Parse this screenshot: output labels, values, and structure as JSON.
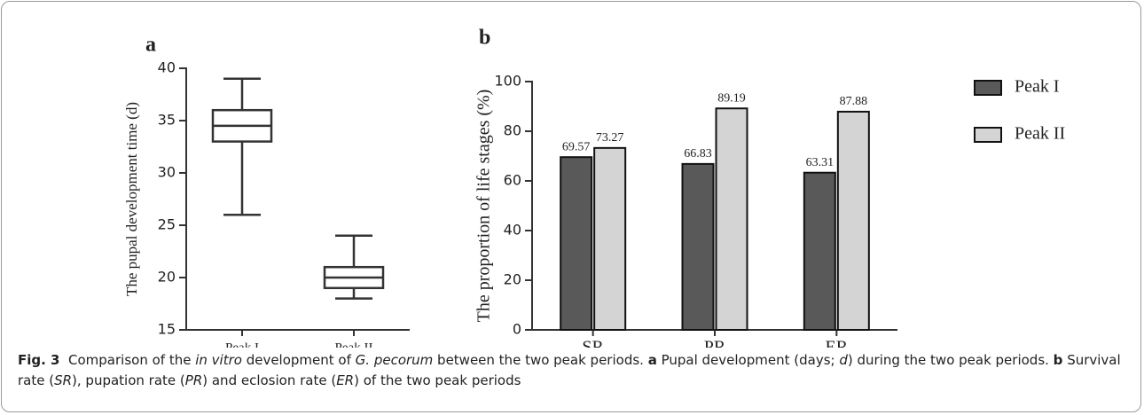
{
  "chart_data": [
    {
      "type": "box",
      "panel_label": "a",
      "y_label": "The pupal development time (d)",
      "categories": [
        "Peak I",
        "Peak II"
      ],
      "boxes": [
        {
          "min": 26,
          "q1": 33,
          "median": 34.5,
          "q3": 36,
          "max": 39
        },
        {
          "min": 18,
          "q1": 19,
          "median": 20,
          "q3": 21,
          "max": 24
        }
      ],
      "color": "#333333",
      "ylim": [
        15,
        40
      ],
      "yticks": [
        15,
        20,
        25,
        30,
        35,
        40
      ],
      "grid": false
    },
    {
      "type": "bar",
      "panel_label": "b",
      "y_label": "The proportion of life stages (%)",
      "categories": [
        "SR",
        "PR",
        "ER"
      ],
      "series": [
        {
          "name": "Peak I",
          "color": "#595959",
          "values": [
            69.57,
            66.83,
            63.31
          ]
        },
        {
          "name": "Peak II",
          "color": "#d4d4d4",
          "values": [
            73.27,
            89.19,
            87.88
          ]
        }
      ],
      "ylim": [
        0,
        100
      ],
      "yticks": [
        0,
        20,
        40,
        60,
        80,
        100
      ],
      "grid": false,
      "legend": "right"
    }
  ],
  "caption": [
    {
      "text": "Fig. 3",
      "style": "bold"
    },
    {
      "text": "  Comparison of the ",
      "style": "normal"
    },
    {
      "text": "in vitro",
      "style": "italic"
    },
    {
      "text": " development of ",
      "style": "normal"
    },
    {
      "text": "G. pecorum",
      "style": "italic"
    },
    {
      "text": " between the two peak periods. ",
      "style": "normal"
    },
    {
      "text": "a",
      "style": "bold"
    },
    {
      "text": " Pupal development (days; ",
      "style": "normal"
    },
    {
      "text": "d",
      "style": "italic"
    },
    {
      "text": ") during the two peak periods. ",
      "style": "normal"
    },
    {
      "text": "b",
      "style": "bold"
    },
    {
      "text": " Survival rate (",
      "style": "normal"
    },
    {
      "text": "SR",
      "style": "italic"
    },
    {
      "text": "), pupation rate (",
      "style": "normal"
    },
    {
      "text": "PR",
      "style": "italic"
    },
    {
      "text": ") and eclosion rate (",
      "style": "normal"
    },
    {
      "text": "ER",
      "style": "italic"
    },
    {
      "text": ") of the two peak periods",
      "style": "normal"
    }
  ]
}
